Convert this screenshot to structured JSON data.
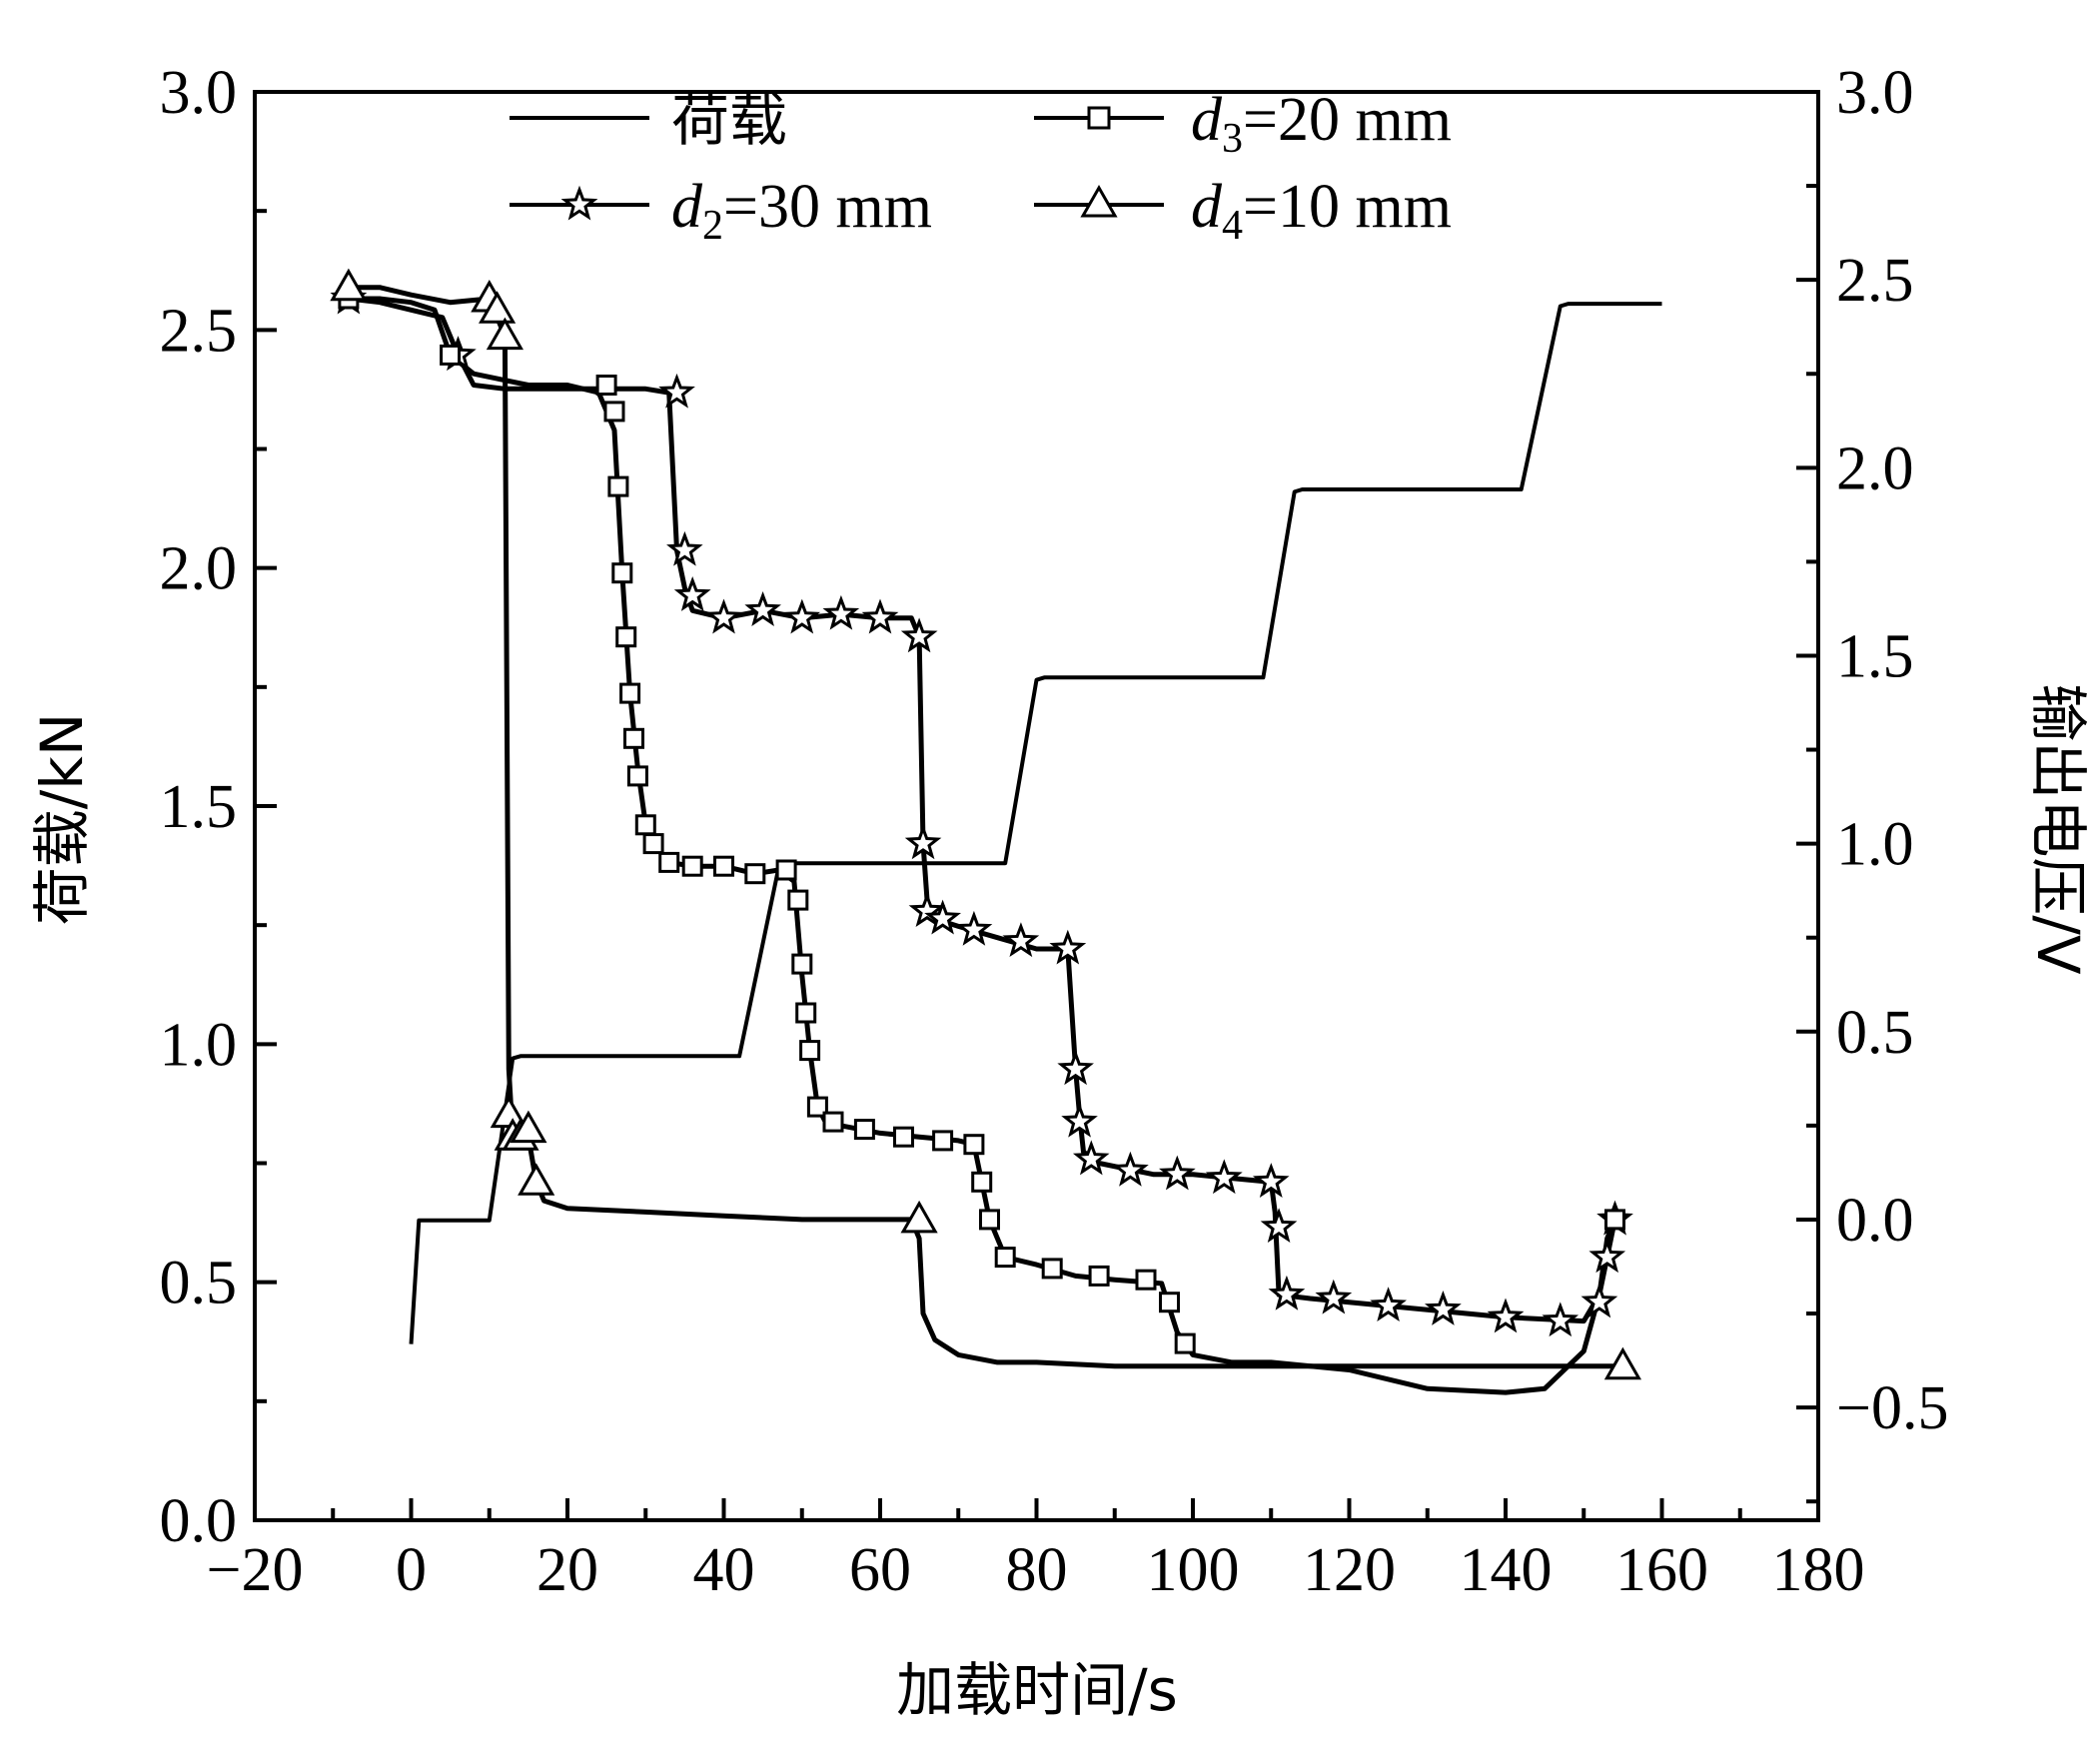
{
  "chart_data": {
    "type": "line",
    "xlabel": "加载时间/s",
    "ylabel_left": "荷载/kN",
    "ylabel_right": "输出电压/V",
    "xlim": [
      -20,
      180
    ],
    "ylim_left": [
      0.0,
      3.0
    ],
    "ylim_right": [
      -0.8,
      3.0
    ],
    "x_ticks": [
      "−20",
      "0",
      "20",
      "40",
      "60",
      "80",
      "100",
      "120",
      "140",
      "160",
      "180"
    ],
    "y_left_ticks": [
      "0.0",
      "0.5",
      "1.0",
      "1.5",
      "2.0",
      "2.5",
      "3.0"
    ],
    "y_right_ticks": [
      "−0.5",
      "0.0",
      "0.5",
      "1.0",
      "1.5",
      "2.0",
      "2.5",
      "3.0"
    ],
    "grid": false,
    "legend_position": "top",
    "legend": [
      {
        "id": "load",
        "label": "荷载",
        "marker": "none"
      },
      {
        "id": "d3",
        "label_italic": "d",
        "label_sub": "3",
        "label_rest": "=20 mm",
        "marker": "square"
      },
      {
        "id": "d2",
        "label_italic": "d",
        "label_sub": "2",
        "label_rest": "=30 mm",
        "marker": "star"
      },
      {
        "id": "d4",
        "label_italic": "d",
        "label_sub": "4",
        "label_rest": "=10 mm",
        "marker": "triangle"
      }
    ],
    "series": [
      {
        "id": "load",
        "name": "荷载",
        "axis": "left",
        "marker": "none",
        "points": [
          [
            0,
            0.37
          ],
          [
            1,
            0.63
          ],
          [
            9,
            0.63
          ],
          [
            10,
            0.63
          ],
          [
            13,
            0.97
          ],
          [
            14,
            0.975
          ],
          [
            42,
            0.975
          ],
          [
            47,
            1.37
          ],
          [
            48,
            1.38
          ],
          [
            76,
            1.38
          ],
          [
            80,
            1.765
          ],
          [
            81,
            1.77
          ],
          [
            109,
            1.77
          ],
          [
            113,
            2.16
          ],
          [
            114,
            2.165
          ],
          [
            142,
            2.165
          ],
          [
            147,
            2.55
          ],
          [
            148,
            2.555
          ],
          [
            160,
            2.555
          ]
        ]
      },
      {
        "id": "d2",
        "name": "d2=30 mm",
        "axis": "right",
        "marker": "star",
        "points": [
          [
            -8,
            2.45
          ],
          [
            -4,
            2.44
          ],
          [
            0,
            2.42
          ],
          [
            4,
            2.4
          ],
          [
            6,
            2.3
          ],
          [
            8,
            2.22
          ],
          [
            12,
            2.21
          ],
          [
            20,
            2.21
          ],
          [
            30,
            2.21
          ],
          [
            33,
            2.2
          ],
          [
            34,
            1.78
          ],
          [
            35,
            1.68
          ],
          [
            36,
            1.62
          ],
          [
            40,
            1.6
          ],
          [
            45,
            1.62
          ],
          [
            50,
            1.6
          ],
          [
            55,
            1.61
          ],
          [
            60,
            1.6
          ],
          [
            64,
            1.6
          ],
          [
            65,
            1.55
          ],
          [
            65.5,
            1.0
          ],
          [
            66,
            0.85
          ],
          [
            67,
            0.8
          ],
          [
            70,
            0.78
          ],
          [
            75,
            0.75
          ],
          [
            80,
            0.72
          ],
          [
            84,
            0.72
          ],
          [
            85,
            0.4
          ],
          [
            85.5,
            0.28
          ],
          [
            86,
            0.18
          ],
          [
            88,
            0.15
          ],
          [
            95,
            0.12
          ],
          [
            100,
            0.12
          ],
          [
            105,
            0.11
          ],
          [
            110,
            0.1
          ],
          [
            110.5,
            0.02
          ],
          [
            111,
            -0.2
          ],
          [
            115,
            -0.21
          ],
          [
            120,
            -0.22
          ],
          [
            130,
            -0.24
          ],
          [
            140,
            -0.26
          ],
          [
            150,
            -0.27
          ],
          [
            152,
            -0.2
          ],
          [
            153,
            -0.1
          ],
          [
            154,
            0.0
          ]
        ]
      },
      {
        "id": "d3",
        "name": "d3=20 mm",
        "axis": "right",
        "marker": "square",
        "points": [
          [
            -8,
            2.45
          ],
          [
            -4,
            2.45
          ],
          [
            0,
            2.44
          ],
          [
            3,
            2.42
          ],
          [
            5,
            2.3
          ],
          [
            8,
            2.25
          ],
          [
            15,
            2.22
          ],
          [
            20,
            2.22
          ],
          [
            24,
            2.2
          ],
          [
            26,
            2.1
          ],
          [
            27,
            1.72
          ],
          [
            28,
            1.4
          ],
          [
            29,
            1.2
          ],
          [
            30,
            1.05
          ],
          [
            31,
            1.0
          ],
          [
            33,
            0.95
          ],
          [
            36,
            0.94
          ],
          [
            40,
            0.94
          ],
          [
            44,
            0.92
          ],
          [
            47,
            0.93
          ],
          [
            49,
            0.9
          ],
          [
            50,
            0.65
          ],
          [
            51,
            0.45
          ],
          [
            52,
            0.3
          ],
          [
            53,
            0.26
          ],
          [
            55,
            0.25
          ],
          [
            60,
            0.23
          ],
          [
            65,
            0.22
          ],
          [
            70,
            0.21
          ],
          [
            72,
            0.2
          ],
          [
            74,
            0.0
          ],
          [
            76,
            -0.1
          ],
          [
            80,
            -0.12
          ],
          [
            85,
            -0.15
          ],
          [
            90,
            -0.16
          ],
          [
            96,
            -0.17
          ],
          [
            98,
            -0.3
          ],
          [
            100,
            -0.36
          ],
          [
            105,
            -0.38
          ],
          [
            110,
            -0.38
          ],
          [
            120,
            -0.4
          ],
          [
            130,
            -0.45
          ],
          [
            140,
            -0.46
          ],
          [
            145,
            -0.45
          ],
          [
            150,
            -0.35
          ],
          [
            152,
            -0.2
          ],
          [
            153,
            -0.05
          ],
          [
            154,
            0.0
          ]
        ]
      },
      {
        "id": "d4",
        "name": "d4=10 mm",
        "axis": "right",
        "marker": "triangle",
        "points": [
          [
            -8,
            2.48
          ],
          [
            -4,
            2.48
          ],
          [
            0,
            2.46
          ],
          [
            5,
            2.44
          ],
          [
            10,
            2.45
          ],
          [
            12,
            2.35
          ],
          [
            12.5,
            0.4
          ],
          [
            13,
            0.22
          ],
          [
            14,
            0.22
          ],
          [
            15,
            0.22
          ],
          [
            16,
            0.1
          ],
          [
            17,
            0.05
          ],
          [
            20,
            0.03
          ],
          [
            30,
            0.02
          ],
          [
            40,
            0.01
          ],
          [
            50,
            0.0
          ],
          [
            60,
            0.0
          ],
          [
            64,
            0.0
          ],
          [
            65,
            -0.05
          ],
          [
            65.5,
            -0.25
          ],
          [
            67,
            -0.32
          ],
          [
            70,
            -0.36
          ],
          [
            75,
            -0.38
          ],
          [
            80,
            -0.38
          ],
          [
            90,
            -0.39
          ],
          [
            100,
            -0.39
          ],
          [
            110,
            -0.39
          ],
          [
            120,
            -0.39
          ],
          [
            130,
            -0.39
          ],
          [
            140,
            -0.39
          ],
          [
            150,
            -0.39
          ],
          [
            155,
            -0.39
          ]
        ]
      }
    ],
    "marker_points": {
      "d2": [
        [
          -8,
          2.45
        ],
        [
          6,
          2.3
        ],
        [
          34,
          2.2
        ],
        [
          35,
          1.78
        ],
        [
          36,
          1.66
        ],
        [
          40,
          1.6
        ],
        [
          45,
          1.62
        ],
        [
          50,
          1.6
        ],
        [
          55,
          1.61
        ],
        [
          60,
          1.6
        ],
        [
          65,
          1.55
        ],
        [
          65.5,
          1.0
        ],
        [
          66,
          0.82
        ],
        [
          68,
          0.8
        ],
        [
          72,
          0.77
        ],
        [
          78,
          0.74
        ],
        [
          84,
          0.72
        ],
        [
          85,
          0.4
        ],
        [
          85.5,
          0.26
        ],
        [
          87,
          0.16
        ],
        [
          92,
          0.13
        ],
        [
          98,
          0.12
        ],
        [
          104,
          0.11
        ],
        [
          110,
          0.1
        ],
        [
          111,
          -0.02
        ],
        [
          112,
          -0.2
        ],
        [
          118,
          -0.21
        ],
        [
          125,
          -0.23
        ],
        [
          132,
          -0.24
        ],
        [
          140,
          -0.26
        ],
        [
          147,
          -0.27
        ],
        [
          152,
          -0.22
        ],
        [
          153,
          -0.1
        ],
        [
          154,
          0.0
        ]
      ],
      "d3": [
        [
          -8,
          2.45
        ],
        [
          5,
          2.3
        ],
        [
          25,
          2.22
        ],
        [
          26,
          2.15
        ],
        [
          26.5,
          1.95
        ],
        [
          27,
          1.72
        ],
        [
          27.5,
          1.55
        ],
        [
          28,
          1.4
        ],
        [
          28.5,
          1.28
        ],
        [
          29,
          1.18
        ],
        [
          30,
          1.05
        ],
        [
          31,
          1.0
        ],
        [
          33,
          0.95
        ],
        [
          36,
          0.94
        ],
        [
          40,
          0.94
        ],
        [
          44,
          0.92
        ],
        [
          48,
          0.93
        ],
        [
          49.5,
          0.85
        ],
        [
          50,
          0.68
        ],
        [
          50.5,
          0.55
        ],
        [
          51,
          0.45
        ],
        [
          52,
          0.3
        ],
        [
          54,
          0.26
        ],
        [
          58,
          0.24
        ],
        [
          63,
          0.22
        ],
        [
          68,
          0.21
        ],
        [
          72,
          0.2
        ],
        [
          73,
          0.1
        ],
        [
          74,
          0.0
        ],
        [
          76,
          -0.1
        ],
        [
          82,
          -0.13
        ],
        [
          88,
          -0.15
        ],
        [
          94,
          -0.16
        ],
        [
          97,
          -0.22
        ],
        [
          99,
          -0.33
        ],
        [
          154,
          0.0
        ]
      ],
      "d4": [
        [
          -8,
          2.48
        ],
        [
          10,
          2.45
        ],
        [
          11,
          2.42
        ],
        [
          12,
          2.35
        ],
        [
          12.5,
          0.28
        ],
        [
          13,
          0.22
        ],
        [
          14,
          0.22
        ],
        [
          15,
          0.24
        ],
        [
          16,
          0.1
        ],
        [
          65,
          0.0
        ],
        [
          155,
          -0.39
        ]
      ]
    }
  }
}
